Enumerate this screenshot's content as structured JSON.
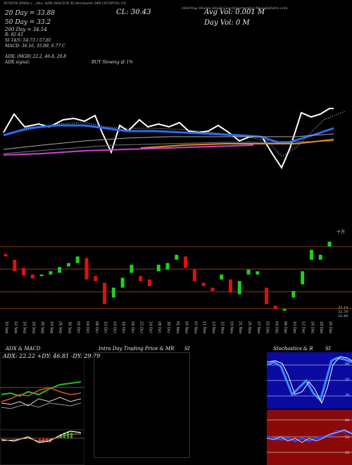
{
  "header": {
    "topline": "SUSP30 EMAs (...)ths, ADX,MACD,B SI,Stochastic,MR (SUSP30) US",
    "vol": "Avg Vol: 0.001 M",
    "ticker_desc": "(Sterling Shares Small Cap Opportunity) MunafaSutra.com",
    "cl": "CL: 30.43",
    "day_vol": "Day Vol: 0 M",
    "ema20": "20 Day = 33.88",
    "ema50": "50 Day = 33.2",
    "ema200": "200 Day = 34.54",
    "si": "SI 14/5: 54.73 / 57.81",
    "macd": "MACD: 36.16, 35.89, 0.77 C",
    "r_val": "R: 92.43",
    "adx_line": "ADX: (MGR) 22.2, 46.8, 29.8",
    "adx_signal_label": "ADX signal:",
    "signal": "BUY Slowing @ 1%"
  },
  "price_scale_labels": [
    "33.14",
    "32.79",
    "32.44"
  ],
  "dates": [
    "10 Sep",
    "12 Sep",
    "16 Sep",
    "18 Sep",
    "20 Sep",
    "24 Sep",
    "26 Sep",
    "30 Sep",
    "02 Oct",
    "04 Oct",
    "08 Oct",
    "10 Oct",
    "14 Oct",
    "16 Oct",
    "18 Oct",
    "22 Oct",
    "24 Oct",
    "28 Oct",
    "30 Oct",
    "01 Nov",
    "05 Nov",
    "07 Nov",
    "11 Nov",
    "13 Nov",
    "15 Nov",
    "19 Nov",
    "21 Nov",
    "25 Nov",
    "27 Nov",
    "02 Dec",
    "04 Dec",
    "06 Dec",
    "10 Dec",
    "12 Dec",
    "16 Dec",
    "18 Dec",
    "20 Dec"
  ],
  "panels": {
    "adx_title": "ADX & MACD",
    "adx_values": "ADX: 22.22  +DY: 46.81  -DY: 29.79",
    "intraday_title": "Intra Day Trading Price & MR",
    "si_title": "SI",
    "stoch_title": "Stochastics & R",
    "stoch_si": "SI",
    "stoch_scale": [
      "80",
      "50",
      "20"
    ],
    "rsi_scale": [
      "80",
      "50",
      "20"
    ]
  },
  "chart_data": {
    "type": "candlestick",
    "note_scale": "relative",
    "candles": [
      {
        "o": 34.55,
        "c": 34.4
      },
      {
        "o": 34.2,
        "c": 33.5
      },
      {
        "o": 33.7,
        "c": 33.25
      },
      {
        "o": 33.3,
        "c": 33.05
      },
      {
        "o": 33.2,
        "c": 33.3
      },
      {
        "o": 33.3,
        "c": 33.5
      },
      {
        "o": 33.4,
        "c": 33.75
      },
      {
        "o": 33.8,
        "c": 34.0
      },
      {
        "o": 34.0,
        "c": 34.4
      },
      {
        "o": 34.3,
        "c": 33.0
      },
      {
        "o": 33.2,
        "c": 32.9
      },
      {
        "o": 32.8,
        "c": 31.5
      },
      {
        "o": 31.9,
        "c": 32.5
      },
      {
        "o": 32.5,
        "c": 33.1
      },
      {
        "o": 33.4,
        "c": 33.9
      },
      {
        "o": 33.2,
        "c": 32.9
      },
      {
        "o": 33.0,
        "c": 32.6
      },
      {
        "o": 33.5,
        "c": 33.9
      },
      {
        "o": 33.6,
        "c": 34.0
      },
      {
        "o": 34.2,
        "c": 34.5
      },
      {
        "o": 34.4,
        "c": 33.7
      },
      {
        "o": 33.6,
        "c": 32.9
      },
      {
        "o": 32.8,
        "c": 32.6
      },
      {
        "o": 32.5,
        "c": 32.3
      },
      {
        "o": 33.0,
        "c": 33.3
      },
      {
        "o": 33.0,
        "c": 32.2
      },
      {
        "o": 32.1,
        "c": 32.9
      },
      {
        "o": 33.3,
        "c": 33.6
      },
      {
        "o": 33.3,
        "c": 33.5
      },
      {
        "o": 32.5,
        "c": 31.5
      },
      {
        "o": 31.4,
        "c": 31.2
      },
      {
        "o": 31.1,
        "c": 31.2
      },
      {
        "o": 31.9,
        "c": 32.3
      },
      {
        "o": 32.7,
        "c": 33.5
      },
      {
        "o": 34.2,
        "c": 34.8
      },
      {
        "o": 34.2,
        "c": 34.5
      },
      {
        "o": 35.0,
        "c": 35.3
      }
    ]
  }
}
